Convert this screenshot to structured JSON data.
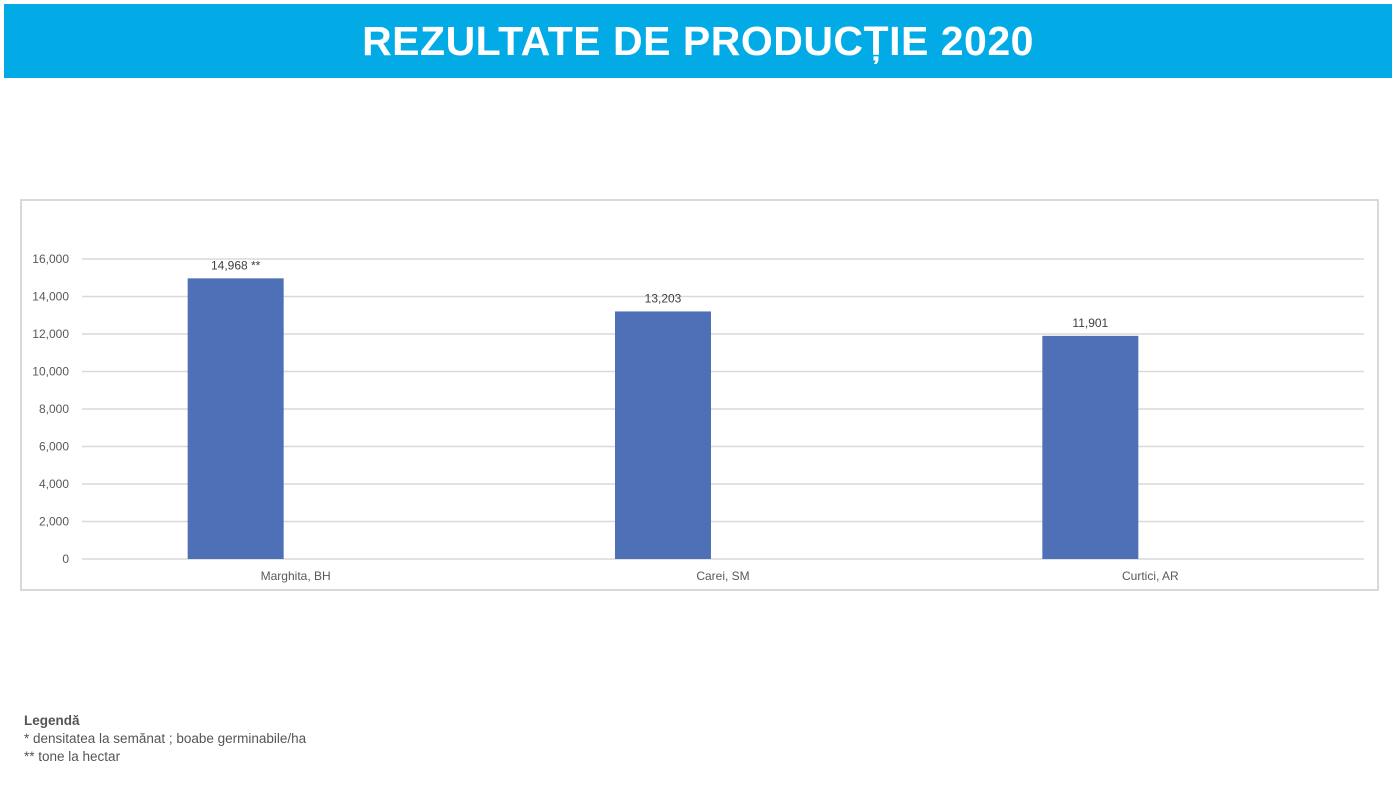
{
  "header": {
    "title": "REZULTATE DE PRODUCȚIE 2020",
    "color": "#02abe6"
  },
  "chart_data": {
    "type": "bar",
    "categories": [
      "Marghita, BH",
      "Carei, SM",
      "Curtici, AR"
    ],
    "values": [
      14968,
      13203,
      11901
    ],
    "data_labels": [
      "14,968 **",
      "13,203",
      "11,901"
    ],
    "ylim": [
      0,
      16000
    ],
    "yticks": [
      "0",
      "2,000",
      "4,000",
      "6,000",
      "8,000",
      "10,000",
      "12,000",
      "14,000",
      "16,000"
    ],
    "grid": true,
    "bar_color": "#4e70b6",
    "title": "",
    "xlabel": "",
    "ylabel": ""
  },
  "legend": {
    "heading": "Legendă",
    "items": [
      "* densitatea la semănat ; boabe germinabile/ha",
      "** tone la hectar"
    ]
  }
}
